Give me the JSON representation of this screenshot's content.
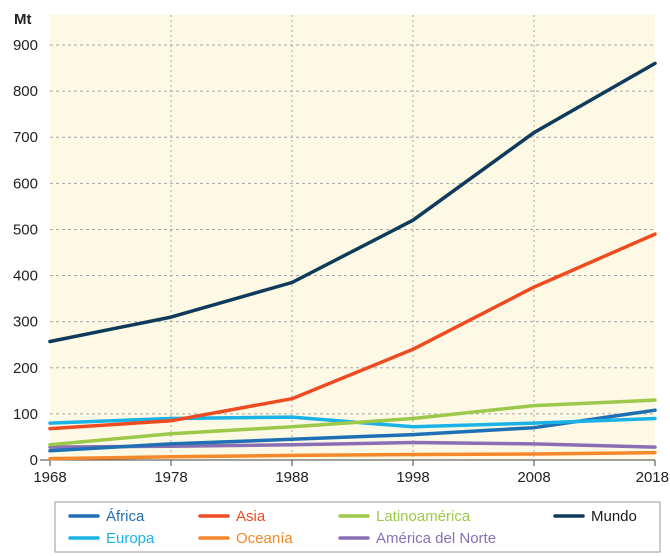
{
  "chart_data": {
    "type": "line",
    "title": "",
    "ylabel": "Mt",
    "xlabel": "",
    "x": [
      "1968",
      "1978",
      "1988",
      "1998",
      "2008",
      "2018"
    ],
    "ylim": [
      0,
      900
    ],
    "yticks": [
      "0",
      "100",
      "200",
      "300",
      "400",
      "500",
      "600",
      "700",
      "800",
      "900"
    ],
    "grid": true,
    "legend_position": "bottom",
    "background_color": "#fdf9e4",
    "series": [
      {
        "name": "África",
        "color": "#1f6fb5",
        "values": [
          20,
          35,
          45,
          55,
          70,
          108
        ]
      },
      {
        "name": "Asia",
        "color": "#ef4b22",
        "values": [
          68,
          85,
          133,
          240,
          375,
          490
        ]
      },
      {
        "name": "Latinoamérica",
        "color": "#9cc94a",
        "values": [
          33,
          57,
          72,
          90,
          118,
          130
        ]
      },
      {
        "name": "Mundo",
        "color": "#0e3a5b",
        "values": [
          257,
          310,
          385,
          520,
          710,
          860
        ]
      },
      {
        "name": "Europa",
        "color": "#1bb3e6",
        "values": [
          80,
          90,
          93,
          72,
          80,
          90
        ]
      },
      {
        "name": "Oceanía",
        "color": "#f5882a",
        "values": [
          3,
          7,
          10,
          12,
          13,
          16
        ]
      },
      {
        "name": "América del Norte",
        "color": "#8a6fb5",
        "values": [
          28,
          30,
          33,
          38,
          35,
          28
        ]
      }
    ]
  }
}
